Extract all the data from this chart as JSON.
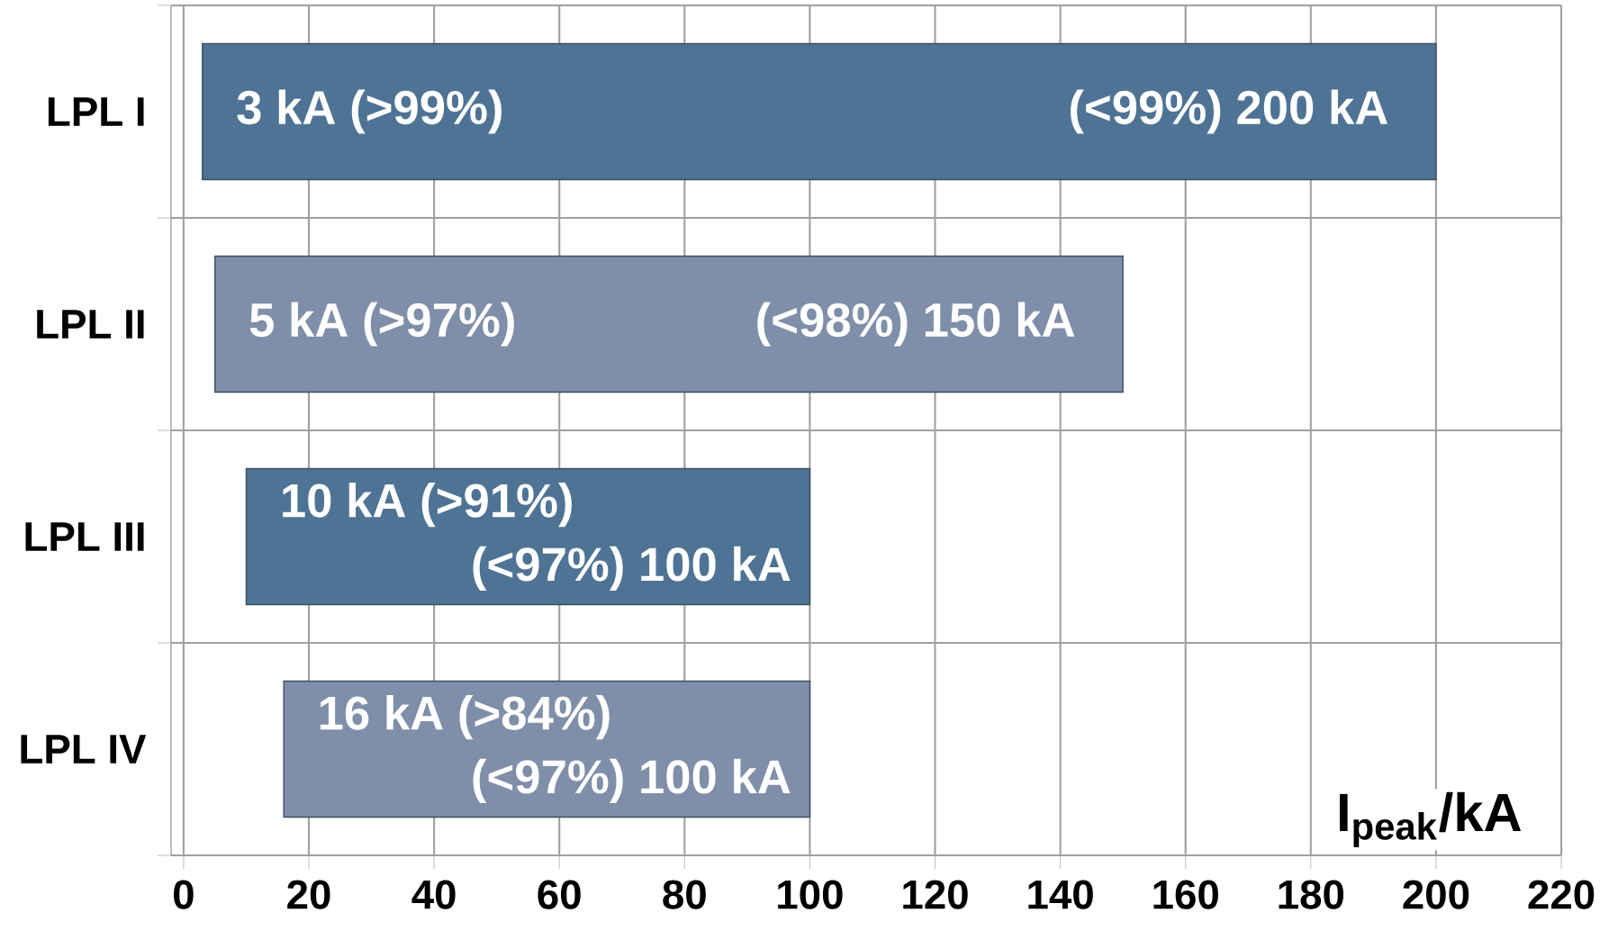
{
  "chart_data": {
    "type": "bar",
    "orientation": "horizontal",
    "xlabel": "I$_{peak}$/kA",
    "categories": [
      "LPL I",
      "LPL II",
      "LPL III",
      "LPL IV"
    ],
    "base": [
      3,
      5,
      10,
      16
    ],
    "values": [
      197,
      145,
      90,
      84
    ],
    "colors": [
      "#4e7394",
      "#7f8fa9",
      "#4e7394",
      "#7f8fa9"
    ],
    "xlim": [
      -2,
      220
    ],
    "xticks": [
      0,
      20,
      40,
      60,
      80,
      100,
      120,
      140,
      160,
      180,
      200,
      220
    ],
    "grid": true,
    "annotations": [
      {
        "text": "3 kA (>99%)",
        "x": 3,
        "y": "LPL I"
      },
      {
        "text": "(<99%) 200 kA",
        "x": 200,
        "y": "LPL I"
      },
      {
        "text": "5 kA (>97%)",
        "x": 5,
        "y": "LPL II"
      },
      {
        "text": "(<98%) 150 kA",
        "x": 150,
        "y": "LPL II"
      },
      {
        "text": "10 kA (>91%)",
        "x": 10,
        "y": "LPL III"
      },
      {
        "text": "(<97%) 100 kA",
        "x": 100,
        "y": "LPL III"
      },
      {
        "text": "16 kA (>84%)",
        "x": 16,
        "y": "LPL IV"
      },
      {
        "text": "(<97%) 100 kA",
        "x": 100,
        "y": "LPL IV"
      }
    ]
  }
}
